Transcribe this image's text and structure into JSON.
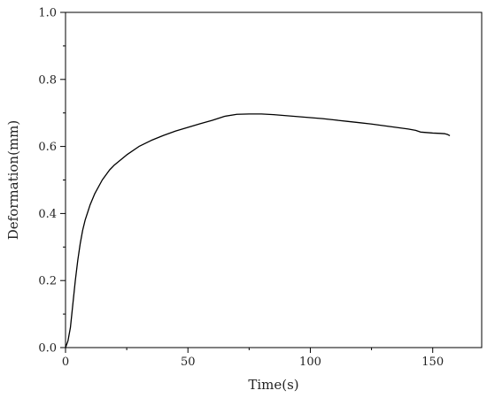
{
  "chart_data": {
    "type": "line",
    "title": "",
    "xlabel": "Time(s)",
    "ylabel": "Deformation(mm)",
    "xlim": [
      0,
      170
    ],
    "ylim": [
      0,
      1.0
    ],
    "x_ticks": [
      0,
      50,
      100,
      150
    ],
    "x_tick_labels": [
      "0",
      "50",
      "100",
      "150"
    ],
    "x_minor_ticks": [
      25,
      75,
      125
    ],
    "y_ticks": [
      0,
      0.2,
      0.4,
      0.6,
      0.8,
      1.0
    ],
    "y_tick_labels": [
      "0.0",
      "0.2",
      "0.4",
      "0.6",
      "0.8",
      "1.0"
    ],
    "y_minor_ticks": [
      0.1,
      0.3,
      0.5,
      0.7,
      0.9
    ],
    "grid": false,
    "legend": "none",
    "line_color": "#000000",
    "series": [
      {
        "x": [
          0,
          1,
          2,
          3,
          4,
          5,
          6,
          7,
          8,
          10,
          12,
          15,
          18,
          20,
          25,
          30,
          35,
          40,
          45,
          50,
          55,
          60,
          65,
          70,
          75,
          80,
          85,
          90,
          95,
          100,
          105,
          110,
          115,
          120,
          125,
          130,
          135,
          140,
          143,
          145,
          150,
          153,
          155,
          156,
          157
        ],
        "y": [
          0.0,
          0.02,
          0.06,
          0.13,
          0.2,
          0.26,
          0.31,
          0.35,
          0.38,
          0.425,
          0.46,
          0.5,
          0.53,
          0.545,
          0.575,
          0.6,
          0.618,
          0.633,
          0.646,
          0.657,
          0.668,
          0.678,
          0.69,
          0.696,
          0.697,
          0.697,
          0.695,
          0.692,
          0.689,
          0.686,
          0.683,
          0.679,
          0.675,
          0.671,
          0.667,
          0.662,
          0.657,
          0.652,
          0.648,
          0.643,
          0.64,
          0.639,
          0.638,
          0.636,
          0.632
        ]
      }
    ]
  }
}
